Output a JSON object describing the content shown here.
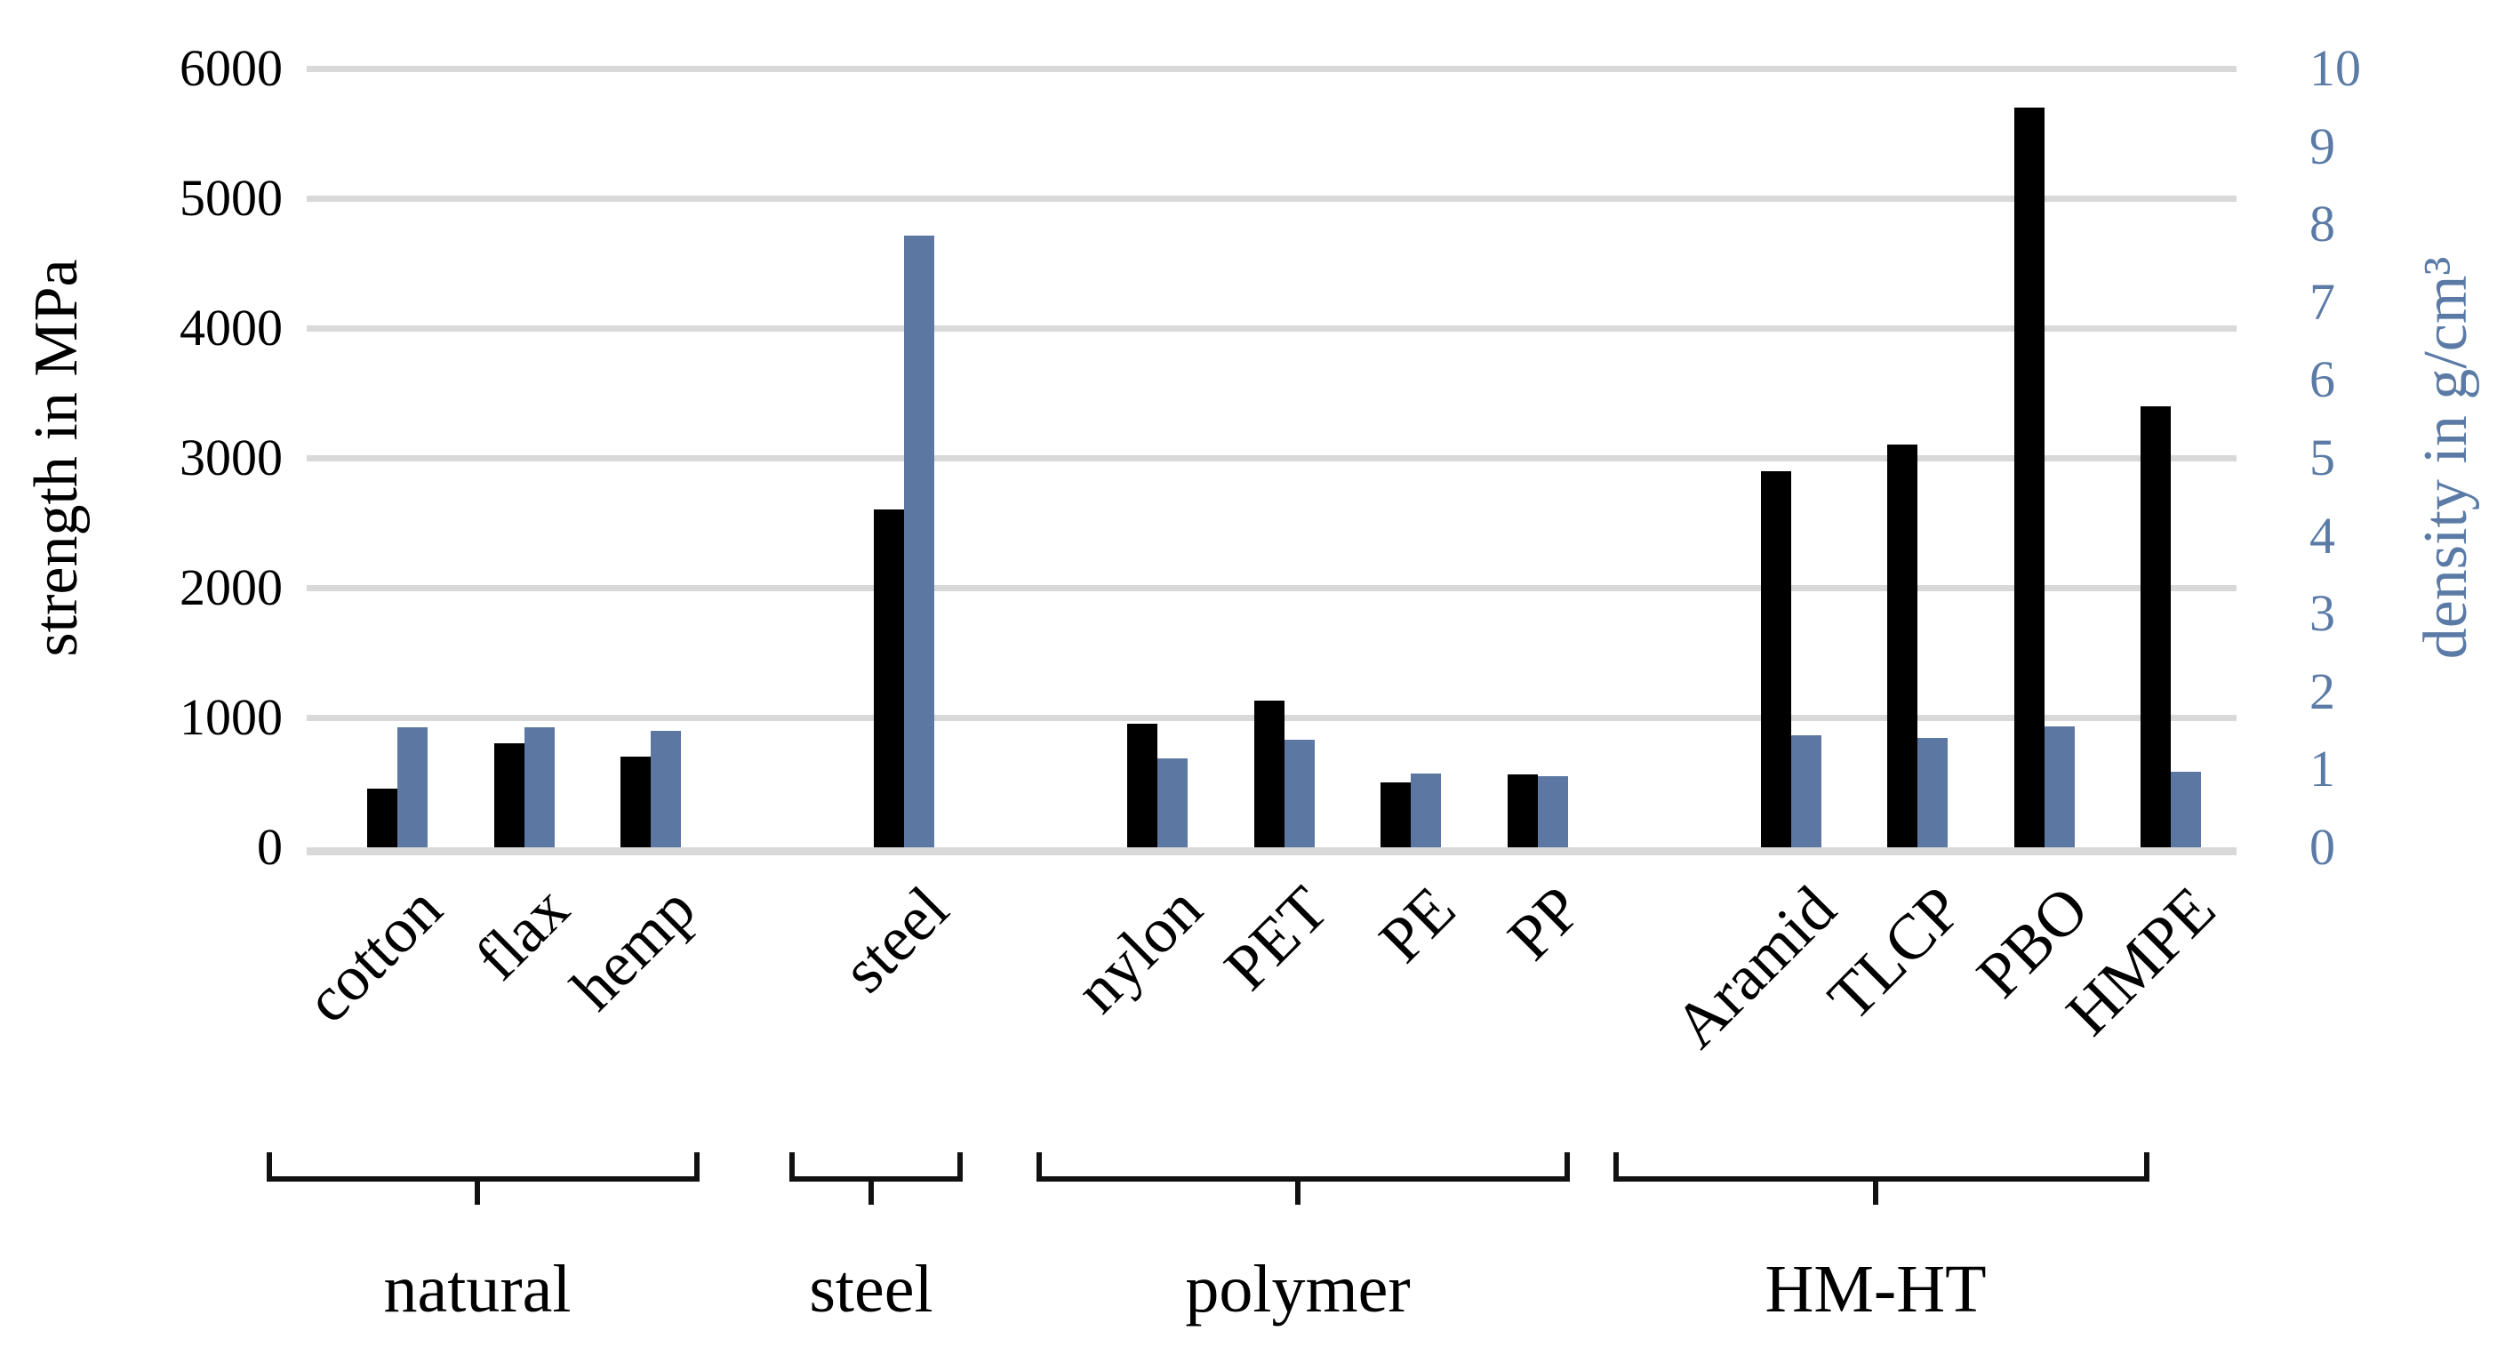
{
  "figure": {
    "left_axis_title": "strength in MPa",
    "right_axis_title": "density in g/cm³"
  },
  "chart_data": {
    "type": "bar",
    "title": "",
    "legend": "none",
    "grid": true,
    "gridline_color": "#d9d9d9",
    "background": "#ffffff",
    "categories": [
      "cotton",
      "flax",
      "hemp",
      "steel",
      "nylon",
      "PET",
      "PE",
      "PP",
      "Aramid",
      "TLCP",
      "PBO",
      "HMPE"
    ],
    "groups": [
      {
        "label": "natural",
        "categories": [
          "cotton",
          "flax",
          "hemp"
        ]
      },
      {
        "label": "steel",
        "categories": [
          "steel"
        ]
      },
      {
        "label": "polymer",
        "categories": [
          "nylon",
          "PET",
          "PE",
          "PP"
        ]
      },
      {
        "label": "HM-HT",
        "categories": [
          "Aramid",
          "TLCP",
          "PBO",
          "HMPE"
        ]
      }
    ],
    "series": [
      {
        "name": "strength",
        "axis": "left",
        "unit": "MPa",
        "color": "#000000",
        "values": [
          450,
          800,
          700,
          2600,
          950,
          1130,
          500,
          560,
          2900,
          3100,
          5700,
          3400
        ]
      },
      {
        "name": "density",
        "axis": "right",
        "unit": "g/cm³",
        "color": "#5d77a3",
        "values": [
          1.54,
          1.54,
          1.5,
          7.85,
          1.14,
          1.38,
          0.95,
          0.91,
          1.44,
          1.4,
          1.55,
          0.97
        ]
      }
    ],
    "left_axis": {
      "label": "strength in MPa",
      "min": 0,
      "max": 6000,
      "tick_step": 1000,
      "tick_labels": [
        "0",
        "1000",
        "2000",
        "3000",
        "4000",
        "5000",
        "6000"
      ],
      "color": "#000000"
    },
    "right_axis": {
      "label": "density in g/cm³",
      "min": 0,
      "max": 10,
      "tick_step": 1,
      "tick_labels": [
        "0",
        "1",
        "2",
        "3",
        "4",
        "5",
        "6",
        "7",
        "8",
        "9",
        "10"
      ],
      "color": "#5b7ba6"
    }
  }
}
